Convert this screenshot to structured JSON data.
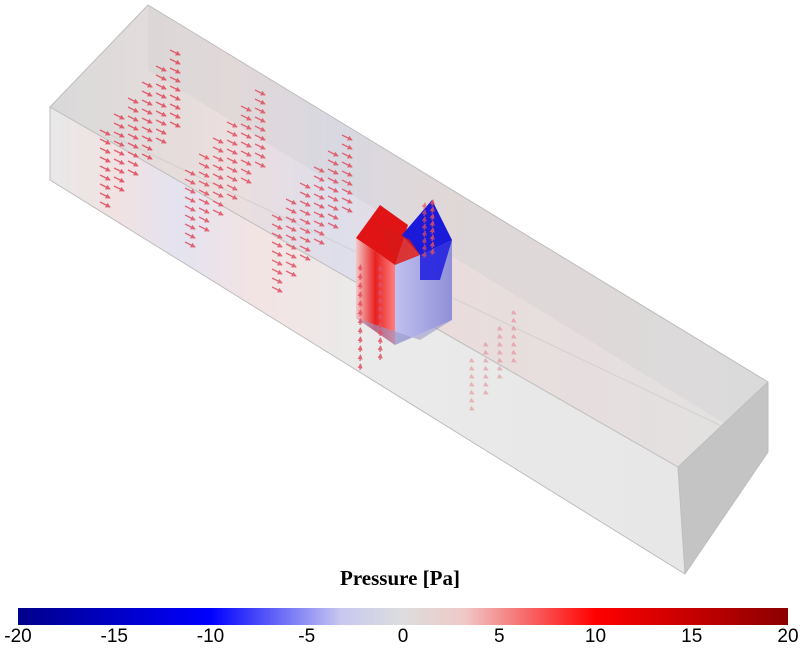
{
  "legend": {
    "title": "Pressure [Pa]",
    "ticks": [
      "-20",
      "-15",
      "-10",
      "-5",
      "0",
      "5",
      "10",
      "15",
      "20"
    ],
    "colors": [
      "#00008b",
      "#0000ff",
      "#c8c8ff",
      "#dddddd",
      "#ffc8c8",
      "#ff0000",
      "#8b0000"
    ]
  },
  "scene": {
    "duct_color": "#d9d9d9",
    "arrow_color": "#e05060",
    "high_pressure_color": "#e01010",
    "low_pressure_color": "#1010d0"
  }
}
